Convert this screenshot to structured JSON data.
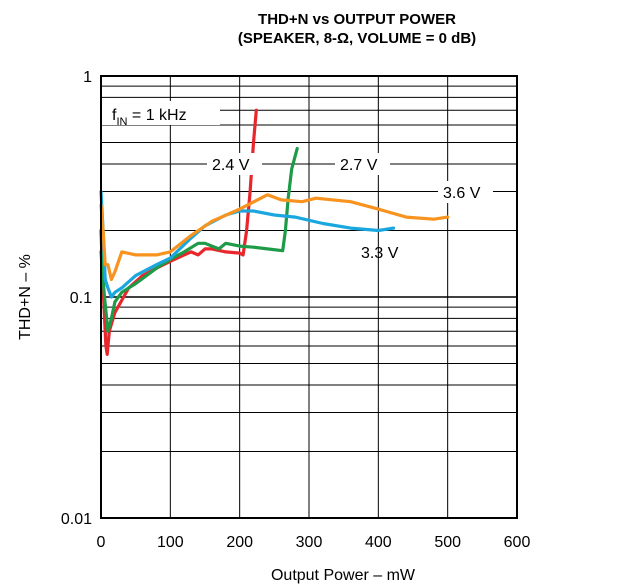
{
  "chart_data": {
    "type": "line",
    "title": "THD+N vs OUTPUT POWER",
    "subtitle": "(SPEAKER, 8-Ω, VOLUME = 0 dB)",
    "xlabel": "Output Power – mW",
    "ylabel": "THD+N – %",
    "xlim": [
      0,
      600
    ],
    "ylim": [
      0.01,
      1
    ],
    "yscale": "log",
    "grid": true,
    "x_ticks": [
      "0",
      "100",
      "200",
      "300",
      "400",
      "500",
      "600"
    ],
    "y_ticks": [
      "0.01",
      "0.1",
      "1"
    ],
    "annotation": {
      "f": "f",
      "sub": "IN",
      "rest": " = 1 kHz"
    },
    "series": [
      {
        "name": "2.4 V",
        "color": "#e8262b",
        "x": [
          0,
          3,
          7,
          9,
          12,
          20,
          40,
          60,
          80,
          100,
          120,
          130,
          140,
          150,
          160,
          180,
          200,
          205,
          210,
          215,
          220,
          224
        ],
        "y": [
          0.2,
          0.11,
          0.06,
          0.055,
          0.07,
          0.085,
          0.11,
          0.125,
          0.135,
          0.145,
          0.155,
          0.16,
          0.155,
          0.165,
          0.165,
          0.16,
          0.158,
          0.155,
          0.2,
          0.3,
          0.5,
          0.7
        ]
      },
      {
        "name": "2.7 V",
        "color": "#1e9b48",
        "x": [
          0,
          5,
          10,
          15,
          20,
          30,
          50,
          80,
          100,
          120,
          140,
          150,
          160,
          170,
          180,
          200,
          220,
          240,
          262,
          266,
          270,
          275,
          283
        ],
        "y": [
          0.16,
          0.1,
          0.07,
          0.08,
          0.095,
          0.105,
          0.115,
          0.135,
          0.148,
          0.16,
          0.175,
          0.175,
          0.17,
          0.165,
          0.175,
          0.17,
          0.168,
          0.165,
          0.162,
          0.2,
          0.28,
          0.38,
          0.47
        ]
      },
      {
        "name": "3.3 V",
        "color": "#1aa6df",
        "x": [
          0,
          3,
          6,
          10,
          15,
          20,
          30,
          50,
          80,
          100,
          130,
          150,
          180,
          200,
          220,
          250,
          280,
          320,
          360,
          400,
          422
        ],
        "y": [
          0.3,
          0.2,
          0.12,
          0.11,
          0.1,
          0.105,
          0.11,
          0.125,
          0.14,
          0.15,
          0.185,
          0.21,
          0.235,
          0.245,
          0.245,
          0.235,
          0.23,
          0.215,
          0.205,
          0.2,
          0.205
        ]
      },
      {
        "name": "3.6 V",
        "color": "#f7931e",
        "x": [
          0,
          3,
          6,
          10,
          15,
          20,
          30,
          50,
          80,
          100,
          130,
          160,
          200,
          240,
          260,
          290,
          310,
          360,
          400,
          440,
          480,
          500
        ],
        "y": [
          0.26,
          0.2,
          0.14,
          0.14,
          0.12,
          0.13,
          0.16,
          0.155,
          0.155,
          0.16,
          0.19,
          0.22,
          0.25,
          0.29,
          0.275,
          0.27,
          0.28,
          0.27,
          0.25,
          0.23,
          0.225,
          0.23
        ]
      }
    ]
  }
}
